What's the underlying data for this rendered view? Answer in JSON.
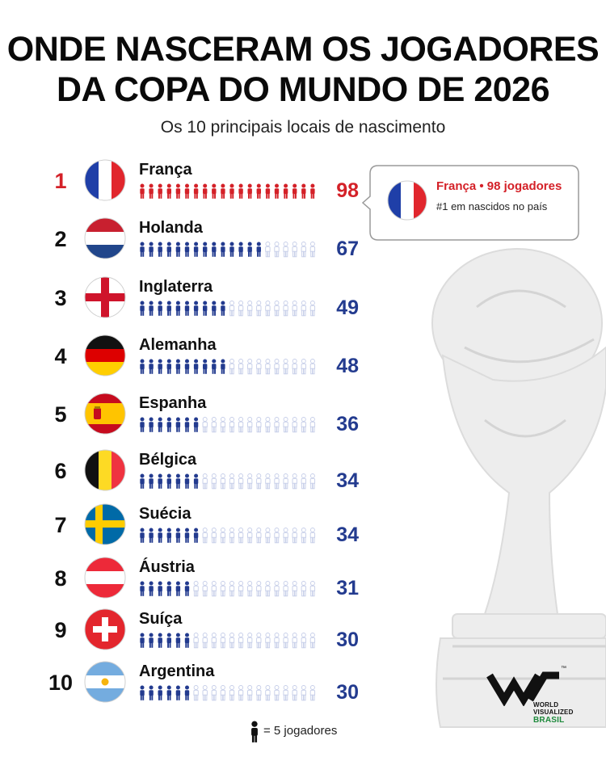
{
  "title_line1": "ONDE NASCERAM OS JOGADORES",
  "title_line2": "DA COPA DO MUNDO DE 2026",
  "subtitle": "Os 10 principais locais de nascimento",
  "callout": {
    "title": "França • 98 jogadores",
    "subtitle": "#1 em nascidos no país",
    "flag": "fr"
  },
  "legend": {
    "text": "= 5 jogadores",
    "icon": "person-icon"
  },
  "logo": {
    "line1": "WORLD",
    "line2": "VISUALIZED",
    "line3": "BRASIL",
    "tm": "™"
  },
  "colors": {
    "first": "#d42128",
    "rest": "#233b8f",
    "empty": "#c5cde8",
    "text": "#111111"
  },
  "chart_data": {
    "type": "bar",
    "title": "ONDE NASCERAM OS JOGADORES DA COPA DO MUNDO DE 2026",
    "subtitle": "Os 10 principais locais de nascimento",
    "unit_per_icon": 5,
    "icons_per_row": 20,
    "categories": [
      "França",
      "Holanda",
      "Inglaterra",
      "Alemanha",
      "Espanha",
      "Bélgica",
      "Suécia",
      "Áustria",
      "Suíça",
      "Argentina"
    ],
    "ranks": [
      "1",
      "2",
      "3",
      "4",
      "5",
      "6",
      "7",
      "8",
      "9",
      "10"
    ],
    "flags": [
      "fr",
      "nl",
      "en",
      "de",
      "es",
      "be",
      "se",
      "at",
      "ch",
      "ar"
    ],
    "values": [
      98,
      67,
      49,
      48,
      36,
      34,
      34,
      31,
      30,
      30
    ],
    "filled_icons": [
      20,
      14,
      10,
      10,
      7,
      7,
      7,
      6,
      6,
      6
    ]
  }
}
